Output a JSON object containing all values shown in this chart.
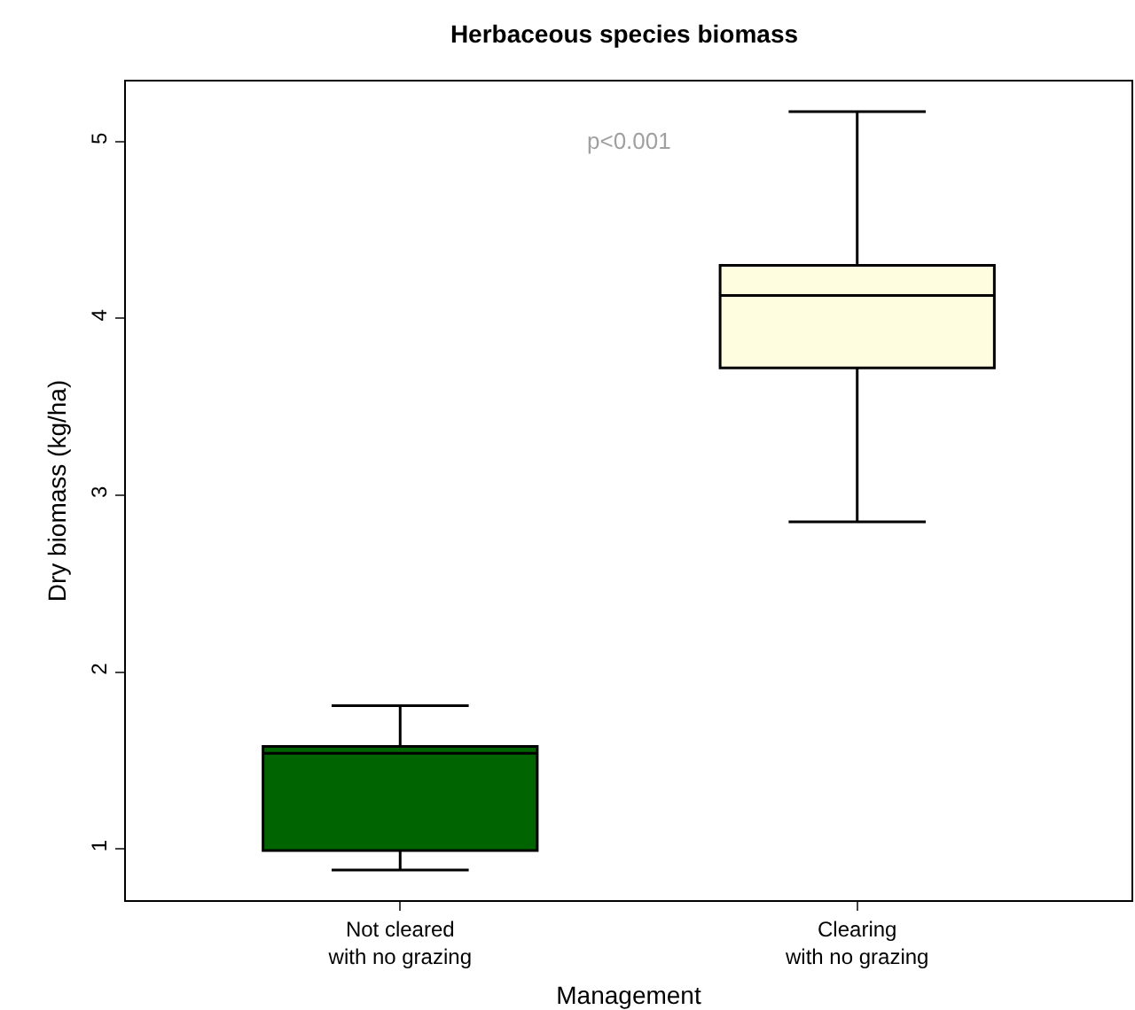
{
  "chart_data": {
    "type": "box",
    "title": "Herbaceous species biomass",
    "xlabel": "Management",
    "ylabel": "Dry biomass (kg/ha)",
    "categories": [
      "Not cleared\nwith no grazing",
      "Clearing\nwith no grazing"
    ],
    "boxes": [
      {
        "low": 0.88,
        "q1": 0.99,
        "median": 1.54,
        "q3": 1.58,
        "high": 1.81
      },
      {
        "low": 2.85,
        "q1": 3.72,
        "median": 4.13,
        "q3": 4.3,
        "high": 5.17
      }
    ],
    "colors": [
      "#006400",
      "#fffde0"
    ],
    "ylim": [
      0.71,
      5.34
    ],
    "yticks": [
      1,
      2,
      3,
      4,
      5
    ],
    "annotations": [
      "p<0.001"
    ]
  }
}
